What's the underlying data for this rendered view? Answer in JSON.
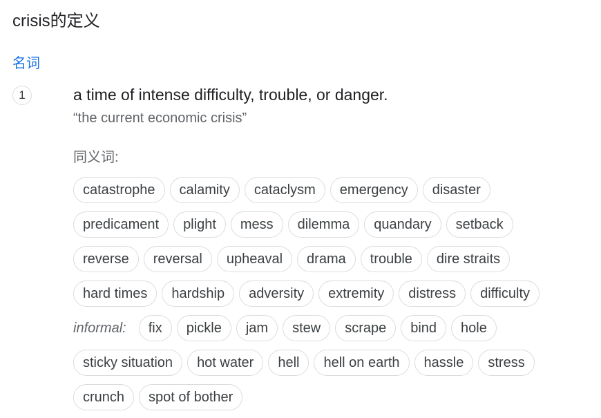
{
  "header": {
    "title": "crisis的定义"
  },
  "entry": {
    "part_of_speech": "名词",
    "sense_number": "1",
    "definition": "a time of intense difficulty, trouble, or danger.",
    "example": "“the current economic crisis”",
    "synonyms_label": "同义词:",
    "informal_label": "informal:",
    "rows": [
      [
        "catastrophe",
        "calamity",
        "cataclysm",
        "emergency",
        "disaster"
      ],
      [
        "predicament",
        "plight",
        "mess",
        "dilemma",
        "quandary",
        "setback"
      ],
      [
        "reverse",
        "reversal",
        "upheaval",
        "drama",
        "trouble",
        "dire straits"
      ],
      [
        "hard times",
        "hardship",
        "adversity",
        "extremity",
        "distress",
        "difficulty"
      ],
      [
        "fix",
        "pickle",
        "jam",
        "stew",
        "scrape",
        "bind",
        "hole"
      ],
      [
        "sticky situation",
        "hot water",
        "hell",
        "hell on earth",
        "hassle",
        "stress"
      ],
      [
        "crunch",
        "spot of bother"
      ]
    ]
  }
}
